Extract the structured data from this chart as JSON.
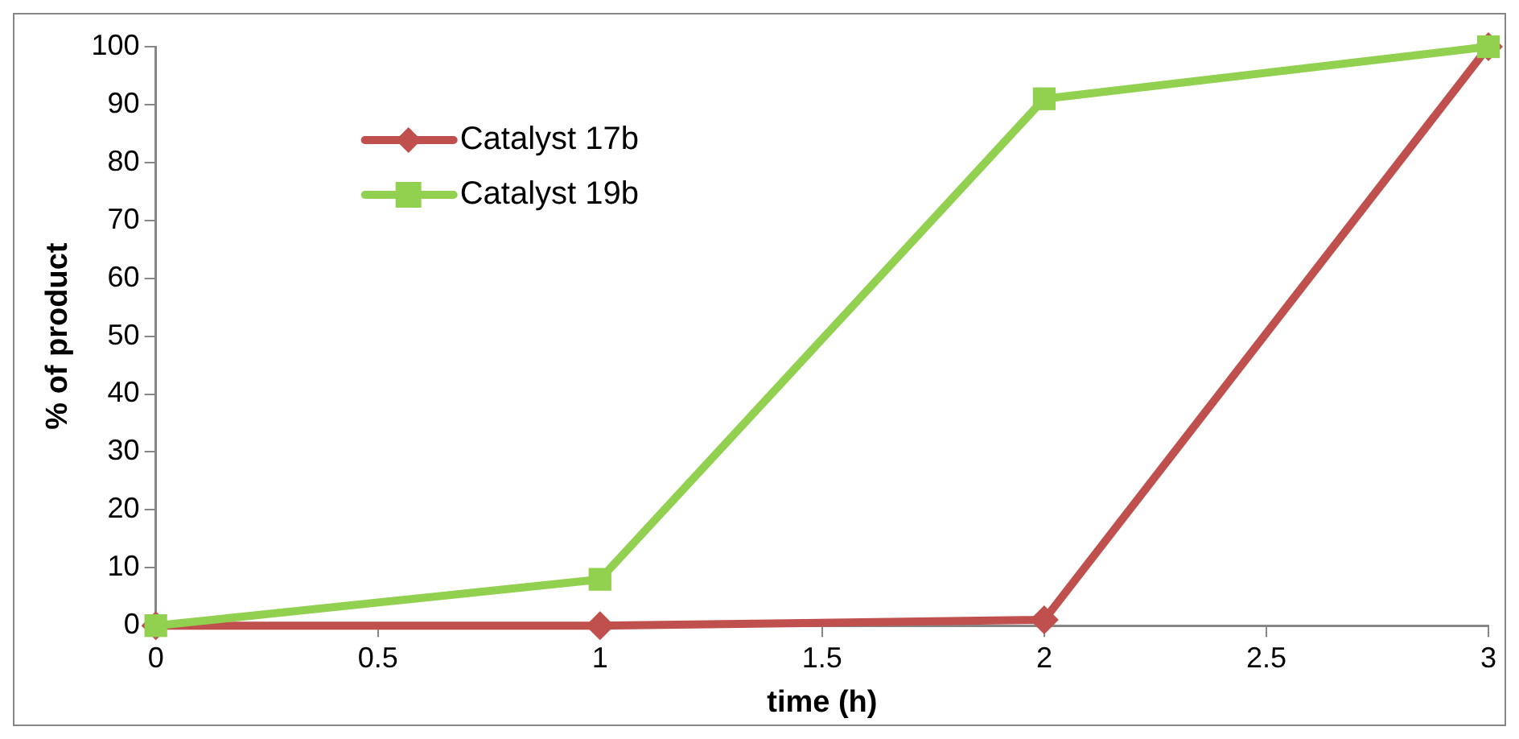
{
  "chart_data": {
    "type": "line",
    "xlabel": "time (h)",
    "ylabel": "% of product",
    "x": [
      0,
      1,
      2,
      3
    ],
    "series": [
      {
        "name": "Catalyst 17b",
        "color": "#c0504d",
        "marker": "diamond",
        "values": [
          0,
          0,
          1,
          100
        ]
      },
      {
        "name": "Catalyst 19b",
        "color": "#92d050",
        "marker": "square",
        "values": [
          0,
          8,
          91,
          100
        ]
      }
    ],
    "xlim": [
      0,
      3
    ],
    "xticks": [
      0,
      0.5,
      1,
      1.5,
      2,
      2.5,
      3
    ],
    "ylim": [
      0,
      100
    ],
    "yticks": [
      0,
      10,
      20,
      30,
      40,
      50,
      60,
      70,
      80,
      90,
      100
    ],
    "grid": false,
    "legend": "top left",
    "line_style": "solid"
  }
}
